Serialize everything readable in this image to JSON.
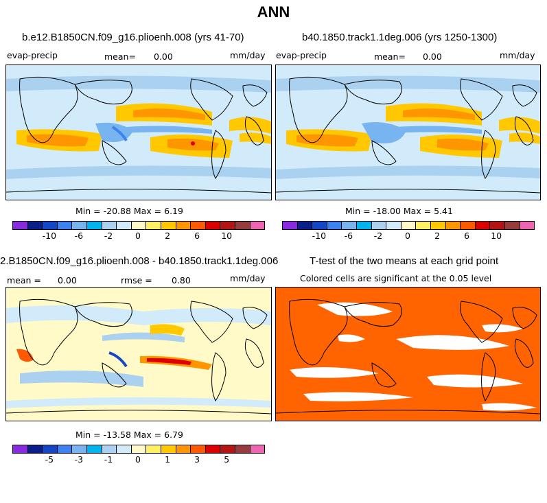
{
  "title": "ANN",
  "panels": [
    {
      "id": "case1",
      "title": "b.e12.B1850CN.f09_g16.plioenh.008 (yrs 41-70)",
      "variable": "evap-precip",
      "mean_label": "mean=",
      "mean_value": "0.00",
      "units": "mm/day",
      "minmax": "Min = -20.88 Max =    6.19"
    },
    {
      "id": "case2",
      "title": "b40.1850.track1.1deg.006 (yrs 1250-1300)",
      "variable": "evap-precip",
      "mean_label": "mean=",
      "mean_value": "0.00",
      "units": "mm/day",
      "minmax": "Min = -18.00 Max =    5.41"
    },
    {
      "id": "diff",
      "title": "2.B1850CN.f09_g16.plioenh.008 - b40.1850.track1.1deg.006",
      "mean_label": "mean =",
      "mean_value": "0.00",
      "rmse_label": "rmse =",
      "rmse_value": "0.80",
      "units": "mm/day",
      "minmax": "Min = -13.58 Max =    6.79"
    },
    {
      "id": "ttest",
      "title": "T-test of the two means at each grid point",
      "subtitle": "Colored cells are significant at the 0.05 level"
    }
  ],
  "colorbars": {
    "colors": [
      "#8a2be2",
      "#0a1e8c",
      "#1446c8",
      "#3c82f0",
      "#78b4f0",
      "#00b4f0",
      "#aad2f0",
      "#d2ebfa",
      "#fffac8",
      "#fff064",
      "#ffc800",
      "#ff9600",
      "#ff5a00",
      "#dc0000",
      "#b41414",
      "#963c3c",
      "#f064b4"
    ],
    "main_ticks": [
      "-10",
      "-6",
      "-2",
      "0",
      "2",
      "6",
      "10"
    ],
    "diff_ticks": [
      "-5",
      "-3",
      "-1",
      "0",
      "1",
      "3",
      "5"
    ]
  },
  "map_colors": {
    "ocean_light": "#d2ebfa",
    "wet_blue": "#78b4f0",
    "deep_blue": "#3c82f0",
    "dry_yellow": "#fff064",
    "dry_orange": "#ffc800",
    "dry_strong": "#ff9600",
    "significance": "#ff6400"
  }
}
